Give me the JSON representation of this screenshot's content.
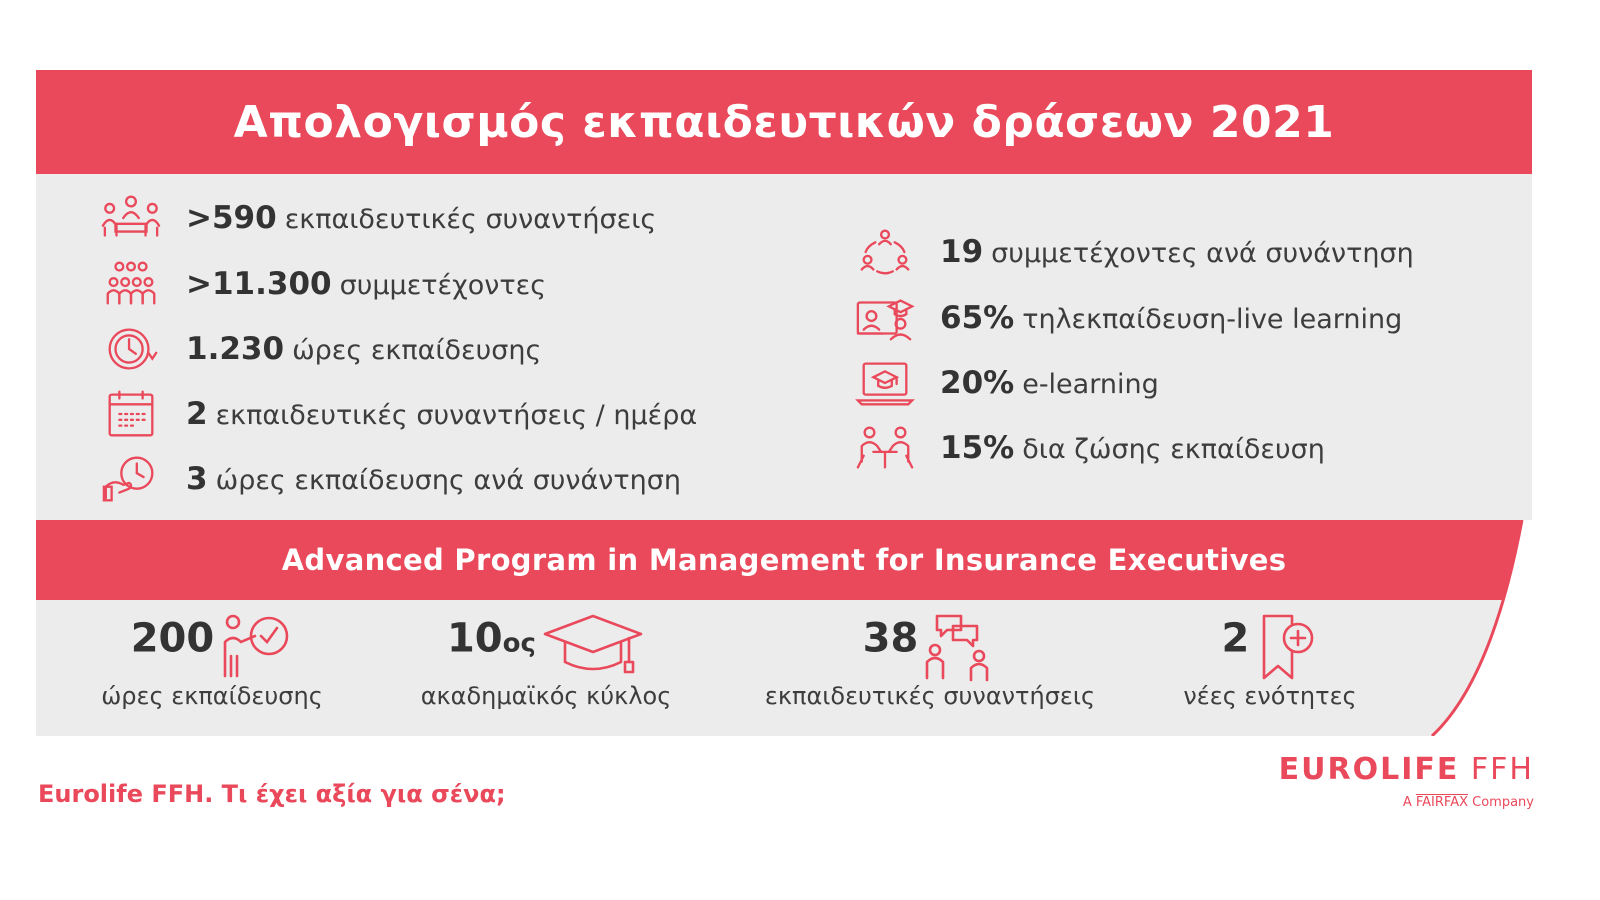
{
  "title": "Απολογισμός εκπαιδευτικών δράσεων 2021",
  "left_stats": [
    {
      "icon": "meeting-icon",
      "value": ">590",
      "label": "εκπαιδευτικές συναντήσεις"
    },
    {
      "icon": "participants-icon",
      "value": ">11.300",
      "label": "συμμετέχοντες"
    },
    {
      "icon": "clock-icon",
      "value": "1.230",
      "label": "ώρες εκπαίδευσης"
    },
    {
      "icon": "calendar-icon",
      "value": "2",
      "label": "εκπαιδευτικές συναντήσεις / ημέρα"
    },
    {
      "icon": "hand-clock-icon",
      "value": "3",
      "label": "ώρες εκπαίδευσης ανά συνάντηση"
    }
  ],
  "right_stats": [
    {
      "icon": "group-cycle-icon",
      "value": "19",
      "label": "συμμετέχοντες ανά συνάντηση"
    },
    {
      "icon": "live-learning-icon",
      "value": "65%",
      "label": "τηλεκπαίδευση-live learning"
    },
    {
      "icon": "laptop-graduation-icon",
      "value": "20%",
      "label": "e-learning"
    },
    {
      "icon": "classroom-icon",
      "value": "15%",
      "label": "δια ζώσης εκπαίδευση"
    }
  ],
  "program": {
    "title": "Advanced Program in Management for Insurance Executives",
    "metrics": [
      {
        "icon": "presenter-clock-icon",
        "value": "200",
        "suffix": "",
        "label": "ώρες εκπαίδευσης"
      },
      {
        "icon": "graduation-cap-icon",
        "value": "10",
        "suffix": "ος",
        "label": "ακαδημαϊκός κύκλος"
      },
      {
        "icon": "discussion-icon",
        "value": "38",
        "suffix": "",
        "label": "εκπαιδευτικές συναντήσεις"
      },
      {
        "icon": "bookmark-plus-icon",
        "value": "2",
        "suffix": "",
        "label": "νέες ενότητες"
      }
    ]
  },
  "tagline": "Eurolife FFH. Τι έχει αξία για σένα;",
  "logo": {
    "brand_main": "EUROLIFE",
    "brand_suffix": "FFH",
    "sub_a": "A",
    "sub_fairfax": "FAIRFAX",
    "sub_company": "Company"
  },
  "colors": {
    "accent": "#e9495a",
    "panel": "#ececec",
    "text": "#3a3a3a"
  }
}
